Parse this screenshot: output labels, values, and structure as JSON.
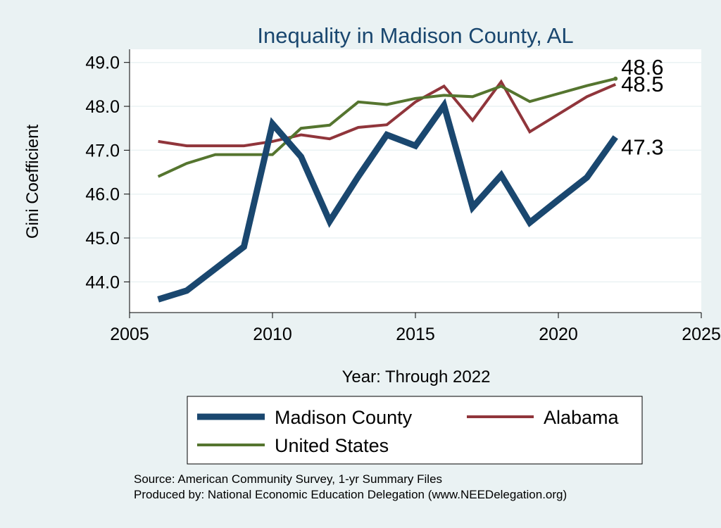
{
  "chart_data": {
    "type": "line",
    "title": "Inequality in Madison County, AL",
    "xlabel": "Year: Through 2022",
    "ylabel": "Gini Coefficient",
    "xlim": [
      2005,
      2025
    ],
    "ylim": [
      43.3,
      49.3
    ],
    "xticks": [
      2005,
      2010,
      2015,
      2020,
      2025
    ],
    "yticks": [
      44.0,
      45.0,
      46.0,
      47.0,
      48.0,
      49.0
    ],
    "ytick_labels": [
      "44.0",
      "45.0",
      "46.0",
      "47.0",
      "48.0",
      "49.0"
    ],
    "grid": true,
    "series": [
      {
        "name": "Madison County",
        "color": "#1a476f",
        "x": [
          2006,
          2007,
          2008,
          2009,
          2010,
          2011,
          2012,
          2013,
          2014,
          2015,
          2016,
          2017,
          2018,
          2019,
          2020,
          2021,
          2022
        ],
        "values": [
          43.6,
          43.8,
          44.3,
          44.8,
          47.6,
          46.85,
          45.38,
          46.4,
          47.35,
          47.1,
          48.02,
          45.7,
          46.43,
          45.35,
          45.87,
          46.38,
          47.3
        ],
        "end_label": "47.3"
      },
      {
        "name": "Alabama",
        "color": "#90353b",
        "x": [
          2006,
          2007,
          2008,
          2009,
          2010,
          2011,
          2012,
          2013,
          2014,
          2015,
          2016,
          2017,
          2018,
          2019,
          2020,
          2021,
          2022
        ],
        "values": [
          47.2,
          47.1,
          47.1,
          47.1,
          47.2,
          47.35,
          47.26,
          47.52,
          47.58,
          48.1,
          48.46,
          47.68,
          48.56,
          47.42,
          47.82,
          48.22,
          48.5
        ],
        "end_label": "48.5"
      },
      {
        "name": "United States",
        "color": "#55752f",
        "x": [
          2006,
          2007,
          2008,
          2009,
          2010,
          2011,
          2012,
          2013,
          2014,
          2015,
          2016,
          2017,
          2018,
          2019,
          2020,
          2021,
          2022
        ],
        "values": [
          46.4,
          46.7,
          46.9,
          46.9,
          46.9,
          47.5,
          47.57,
          48.1,
          48.04,
          48.18,
          48.25,
          48.22,
          48.46,
          48.11,
          48.29,
          48.47,
          48.63
        ],
        "end_label": "48.6"
      }
    ],
    "legend": {
      "position": "bottom",
      "entries": [
        "Madison County",
        "Alabama",
        "United States"
      ]
    },
    "notes": [
      "Source: American Community Survey, 1-yr Summary Files",
      "Produced by: National Economic Education Delegation (www.NEEDelegation.org)"
    ]
  }
}
